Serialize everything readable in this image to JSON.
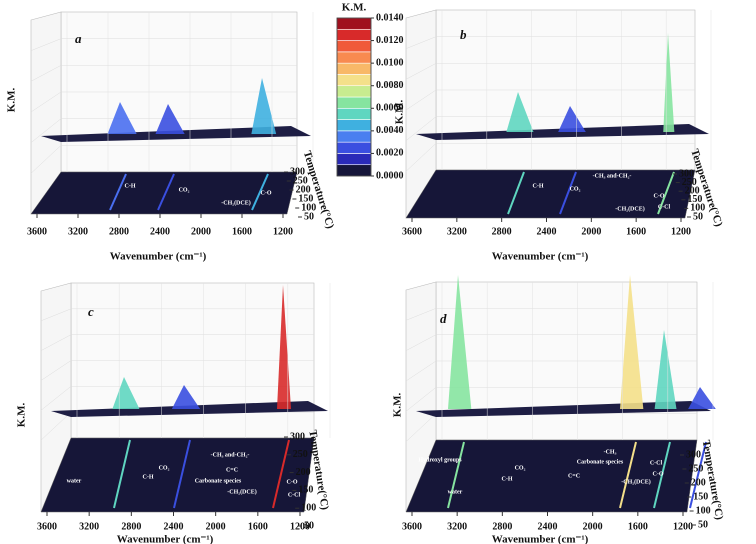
{
  "colorbar": {
    "title": "K.M.",
    "range": [
      0,
      0.014
    ],
    "ticks": [
      {
        "value": 0,
        "label": "0.0000"
      },
      {
        "value": 0.002,
        "label": "0.0020"
      },
      {
        "value": 0.004,
        "label": "0.0040"
      },
      {
        "value": 0.006,
        "label": "0.0060"
      },
      {
        "value": 0.008,
        "label": "0.0080"
      },
      {
        "value": 0.01,
        "label": "0.0100"
      },
      {
        "value": 0.012,
        "label": "0.0120"
      },
      {
        "value": 0.014,
        "label": "0.0140"
      }
    ],
    "colors": [
      "#16163a",
      "#2a2ab8",
      "#3a4fe0",
      "#4a7ff0",
      "#3fb0e0",
      "#5fd6c0",
      "#86e4a0",
      "#c8ec90",
      "#f4e08a",
      "#f8b868",
      "#f88a50",
      "#f05a3a",
      "#d82a2a",
      "#a0101e"
    ]
  },
  "panels": [
    {
      "letter": "a",
      "y_label": "K.M.",
      "x_label": "Wavenumber (cm⁻¹)",
      "t_label": "Temperature(°C)",
      "xticks": [
        3600,
        3200,
        2800,
        2400,
        2000,
        1600,
        1200
      ],
      "tticks": [
        300,
        250,
        200,
        150,
        100,
        50
      ],
      "annotations": [
        "C-H",
        "CO₂",
        "-CH₂(DCE)",
        "C-O"
      ]
    },
    {
      "letter": "b",
      "y_label": "K.M.",
      "x_label": "Wavenumber (cm⁻¹)",
      "t_label": "Temperature(°C)",
      "xticks": [
        3600,
        3200,
        2800,
        2400,
        2000,
        1600,
        1200
      ],
      "tticks": [
        300,
        250,
        200,
        150,
        100,
        50
      ],
      "annotations": [
        "-CH₃ and-CH₂-",
        "C-H",
        "CO₂",
        "C-O",
        "-CH₂(DCE)",
        "C-Cl"
      ]
    },
    {
      "letter": "c",
      "y_label": "K.M.",
      "x_label": "Wavenumber (cm⁻¹)",
      "t_label": "Temperature(°C)",
      "xticks": [
        3600,
        3200,
        2800,
        2400,
        2000,
        1600,
        1200
      ],
      "tticks": [
        300,
        250,
        200,
        150,
        100,
        50
      ],
      "annotations": [
        "-CH₃ and-CH₂-",
        "CO₂",
        "C=C",
        "C-H",
        "water",
        "Carbonate species",
        "-CH₂(DCE)",
        "C-O",
        "C-Cl"
      ]
    },
    {
      "letter": "d",
      "y_label": "K.M.",
      "x_label": "Wavenumber (cm⁻¹)",
      "t_label": "Temperature(°C)",
      "xticks": [
        3600,
        3200,
        2800,
        2400,
        2000,
        1600,
        1200
      ],
      "tticks": [
        300,
        250,
        200,
        150,
        100,
        50
      ],
      "annotations": [
        "-CH₃",
        "Hydroxyl groups",
        "Carbonate species",
        "CO₂",
        "C-Cl",
        "C=C",
        "C-O",
        "-CH₂(DCE)",
        "C-H",
        "water"
      ]
    }
  ]
}
